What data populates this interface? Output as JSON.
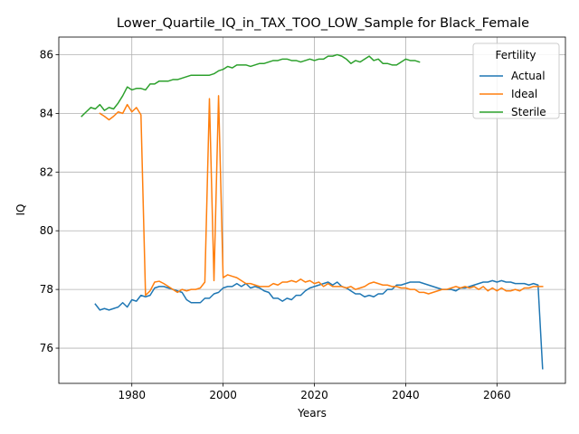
{
  "chart_data": {
    "type": "line",
    "title": "Lower_Quartile_IQ_in_TAX_TOO_LOW_Sample for Black_Female",
    "xlabel": "Years",
    "ylabel": "IQ",
    "xlim": [
      1964,
      2075
    ],
    "ylim": [
      74.8,
      86.6
    ],
    "xticks": [
      1980,
      2000,
      2020,
      2040,
      2060
    ],
    "yticks": [
      76,
      78,
      80,
      82,
      84,
      86
    ],
    "grid": true,
    "legend": {
      "title": "Fertility",
      "placement": "top-right"
    },
    "series": [
      {
        "name": "Actual",
        "color": "#1f77b4",
        "points": [
          [
            1972,
            77.5
          ],
          [
            1973,
            77.3
          ],
          [
            1974,
            77.35
          ],
          [
            1975,
            77.3
          ],
          [
            1976,
            77.35
          ],
          [
            1977,
            77.4
          ],
          [
            1978,
            77.55
          ],
          [
            1979,
            77.4
          ],
          [
            1980,
            77.65
          ],
          [
            1981,
            77.6
          ],
          [
            1982,
            77.8
          ],
          [
            1983,
            77.75
          ],
          [
            1984,
            77.8
          ],
          [
            1985,
            78.05
          ],
          [
            1986,
            78.1
          ],
          [
            1987,
            78.1
          ],
          [
            1988,
            78.05
          ],
          [
            1989,
            78.0
          ],
          [
            1990,
            77.95
          ],
          [
            1991,
            77.9
          ],
          [
            1992,
            77.65
          ],
          [
            1993,
            77.55
          ],
          [
            1994,
            77.55
          ],
          [
            1995,
            77.55
          ],
          [
            1996,
            77.7
          ],
          [
            1997,
            77.7
          ],
          [
            1998,
            77.85
          ],
          [
            1999,
            77.9
          ],
          [
            2000,
            78.05
          ],
          [
            2001,
            78.1
          ],
          [
            2002,
            78.1
          ],
          [
            2003,
            78.2
          ],
          [
            2004,
            78.1
          ],
          [
            2005,
            78.2
          ],
          [
            2006,
            78.05
          ],
          [
            2007,
            78.1
          ],
          [
            2008,
            78.05
          ],
          [
            2009,
            77.95
          ],
          [
            2010,
            77.9
          ],
          [
            2011,
            77.7
          ],
          [
            2012,
            77.7
          ],
          [
            2013,
            77.6
          ],
          [
            2014,
            77.7
          ],
          [
            2015,
            77.65
          ],
          [
            2016,
            77.8
          ],
          [
            2017,
            77.8
          ],
          [
            2018,
            77.95
          ],
          [
            2019,
            78.05
          ],
          [
            2020,
            78.1
          ],
          [
            2021,
            78.15
          ],
          [
            2022,
            78.2
          ],
          [
            2023,
            78.25
          ],
          [
            2024,
            78.15
          ],
          [
            2025,
            78.25
          ],
          [
            2026,
            78.1
          ],
          [
            2027,
            78.05
          ],
          [
            2028,
            77.95
          ],
          [
            2029,
            77.85
          ],
          [
            2030,
            77.85
          ],
          [
            2031,
            77.75
          ],
          [
            2032,
            77.8
          ],
          [
            2033,
            77.75
          ],
          [
            2034,
            77.85
          ],
          [
            2035,
            77.85
          ],
          [
            2036,
            78.0
          ],
          [
            2037,
            78.0
          ],
          [
            2038,
            78.15
          ],
          [
            2039,
            78.15
          ],
          [
            2040,
            78.2
          ],
          [
            2041,
            78.25
          ],
          [
            2042,
            78.25
          ],
          [
            2043,
            78.25
          ],
          [
            2044,
            78.2
          ],
          [
            2045,
            78.15
          ],
          [
            2046,
            78.1
          ],
          [
            2047,
            78.05
          ],
          [
            2048,
            78.0
          ],
          [
            2049,
            78.0
          ],
          [
            2050,
            78.0
          ],
          [
            2051,
            77.95
          ],
          [
            2052,
            78.05
          ],
          [
            2053,
            78.05
          ],
          [
            2054,
            78.1
          ],
          [
            2055,
            78.15
          ],
          [
            2056,
            78.2
          ],
          [
            2057,
            78.25
          ],
          [
            2058,
            78.25
          ],
          [
            2059,
            78.3
          ],
          [
            2060,
            78.25
          ],
          [
            2061,
            78.3
          ],
          [
            2062,
            78.25
          ],
          [
            2063,
            78.25
          ],
          [
            2064,
            78.2
          ],
          [
            2065,
            78.2
          ],
          [
            2066,
            78.2
          ],
          [
            2067,
            78.15
          ],
          [
            2068,
            78.2
          ],
          [
            2069,
            78.15
          ],
          [
            2070,
            75.3
          ]
        ]
      },
      {
        "name": "Ideal",
        "color": "#ff7f0e",
        "points": [
          [
            1973,
            84.0
          ],
          [
            1974,
            83.9
          ],
          [
            1975,
            83.78
          ],
          [
            1976,
            83.9
          ],
          [
            1977,
            84.05
          ],
          [
            1978,
            84.0
          ],
          [
            1979,
            84.3
          ],
          [
            1980,
            84.05
          ],
          [
            1981,
            84.2
          ],
          [
            1982,
            83.95
          ],
          [
            1983,
            77.8
          ],
          [
            1984,
            77.95
          ],
          [
            1985,
            78.25
          ],
          [
            1986,
            78.28
          ],
          [
            1987,
            78.2
          ],
          [
            1988,
            78.1
          ],
          [
            1989,
            78.0
          ],
          [
            1990,
            77.9
          ],
          [
            1991,
            78.0
          ],
          [
            1992,
            77.95
          ],
          [
            1993,
            78.0
          ],
          [
            1994,
            78.0
          ],
          [
            1995,
            78.05
          ],
          [
            1996,
            78.25
          ],
          [
            1997,
            84.5
          ],
          [
            1998,
            78.3
          ],
          [
            1999,
            84.6
          ],
          [
            2000,
            78.4
          ],
          [
            2001,
            78.5
          ],
          [
            2002,
            78.45
          ],
          [
            2003,
            78.4
          ],
          [
            2004,
            78.3
          ],
          [
            2005,
            78.2
          ],
          [
            2006,
            78.2
          ],
          [
            2007,
            78.15
          ],
          [
            2008,
            78.1
          ],
          [
            2009,
            78.1
          ],
          [
            2010,
            78.1
          ],
          [
            2011,
            78.2
          ],
          [
            2012,
            78.15
          ],
          [
            2013,
            78.25
          ],
          [
            2014,
            78.25
          ],
          [
            2015,
            78.3
          ],
          [
            2016,
            78.25
          ],
          [
            2017,
            78.35
          ],
          [
            2018,
            78.25
          ],
          [
            2019,
            78.3
          ],
          [
            2020,
            78.2
          ],
          [
            2021,
            78.25
          ],
          [
            2022,
            78.1
          ],
          [
            2023,
            78.2
          ],
          [
            2024,
            78.1
          ],
          [
            2025,
            78.1
          ],
          [
            2026,
            78.1
          ],
          [
            2027,
            78.05
          ],
          [
            2028,
            78.1
          ],
          [
            2029,
            78.0
          ],
          [
            2030,
            78.05
          ],
          [
            2031,
            78.1
          ],
          [
            2032,
            78.2
          ],
          [
            2033,
            78.25
          ],
          [
            2034,
            78.2
          ],
          [
            2035,
            78.15
          ],
          [
            2036,
            78.15
          ],
          [
            2037,
            78.1
          ],
          [
            2038,
            78.1
          ],
          [
            2039,
            78.05
          ],
          [
            2040,
            78.05
          ],
          [
            2041,
            78.0
          ],
          [
            2042,
            78.0
          ],
          [
            2043,
            77.9
          ],
          [
            2044,
            77.9
          ],
          [
            2045,
            77.85
          ],
          [
            2046,
            77.9
          ],
          [
            2047,
            77.95
          ],
          [
            2048,
            78.0
          ],
          [
            2049,
            78.0
          ],
          [
            2050,
            78.05
          ],
          [
            2051,
            78.1
          ],
          [
            2052,
            78.05
          ],
          [
            2053,
            78.1
          ],
          [
            2054,
            78.05
          ],
          [
            2055,
            78.1
          ],
          [
            2056,
            78.0
          ],
          [
            2057,
            78.1
          ],
          [
            2058,
            77.95
          ],
          [
            2059,
            78.05
          ],
          [
            2060,
            77.95
          ],
          [
            2061,
            78.05
          ],
          [
            2062,
            77.95
          ],
          [
            2063,
            77.95
          ],
          [
            2064,
            78.0
          ],
          [
            2065,
            77.95
          ],
          [
            2066,
            78.05
          ],
          [
            2067,
            78.05
          ],
          [
            2068,
            78.1
          ],
          [
            2069,
            78.1
          ],
          [
            2070,
            78.1
          ]
        ]
      },
      {
        "name": "Sterile",
        "color": "#2ca02c",
        "points": [
          [
            1969,
            83.9
          ],
          [
            1970,
            84.05
          ],
          [
            1971,
            84.2
          ],
          [
            1972,
            84.15
          ],
          [
            1973,
            84.3
          ],
          [
            1974,
            84.1
          ],
          [
            1975,
            84.2
          ],
          [
            1976,
            84.15
          ],
          [
            1977,
            84.35
          ],
          [
            1978,
            84.6
          ],
          [
            1979,
            84.9
          ],
          [
            1980,
            84.8
          ],
          [
            1981,
            84.85
          ],
          [
            1982,
            84.85
          ],
          [
            1983,
            84.8
          ],
          [
            1984,
            85.0
          ],
          [
            1985,
            85.0
          ],
          [
            1986,
            85.1
          ],
          [
            1987,
            85.1
          ],
          [
            1988,
            85.1
          ],
          [
            1989,
            85.15
          ],
          [
            1990,
            85.15
          ],
          [
            1991,
            85.2
          ],
          [
            1992,
            85.25
          ],
          [
            1993,
            85.3
          ],
          [
            1994,
            85.3
          ],
          [
            1995,
            85.3
          ],
          [
            1996,
            85.3
          ],
          [
            1997,
            85.3
          ],
          [
            1998,
            85.35
          ],
          [
            1999,
            85.45
          ],
          [
            2000,
            85.5
          ],
          [
            2001,
            85.6
          ],
          [
            2002,
            85.55
          ],
          [
            2003,
            85.65
          ],
          [
            2004,
            85.65
          ],
          [
            2005,
            85.65
          ],
          [
            2006,
            85.6
          ],
          [
            2007,
            85.65
          ],
          [
            2008,
            85.7
          ],
          [
            2009,
            85.7
          ],
          [
            2010,
            85.75
          ],
          [
            2011,
            85.8
          ],
          [
            2012,
            85.8
          ],
          [
            2013,
            85.85
          ],
          [
            2014,
            85.85
          ],
          [
            2015,
            85.8
          ],
          [
            2016,
            85.8
          ],
          [
            2017,
            85.75
          ],
          [
            2018,
            85.8
          ],
          [
            2019,
            85.85
          ],
          [
            2020,
            85.8
          ],
          [
            2021,
            85.85
          ],
          [
            2022,
            85.85
          ],
          [
            2023,
            85.95
          ],
          [
            2024,
            85.95
          ],
          [
            2025,
            86.0
          ],
          [
            2026,
            85.95
          ],
          [
            2027,
            85.85
          ],
          [
            2028,
            85.7
          ],
          [
            2029,
            85.8
          ],
          [
            2030,
            85.75
          ],
          [
            2031,
            85.85
          ],
          [
            2032,
            85.95
          ],
          [
            2033,
            85.8
          ],
          [
            2034,
            85.85
          ],
          [
            2035,
            85.7
          ],
          [
            2036,
            85.7
          ],
          [
            2037,
            85.65
          ],
          [
            2038,
            85.65
          ],
          [
            2039,
            85.75
          ],
          [
            2040,
            85.85
          ],
          [
            2041,
            85.8
          ],
          [
            2042,
            85.8
          ],
          [
            2043,
            85.75
          ]
        ]
      }
    ]
  }
}
